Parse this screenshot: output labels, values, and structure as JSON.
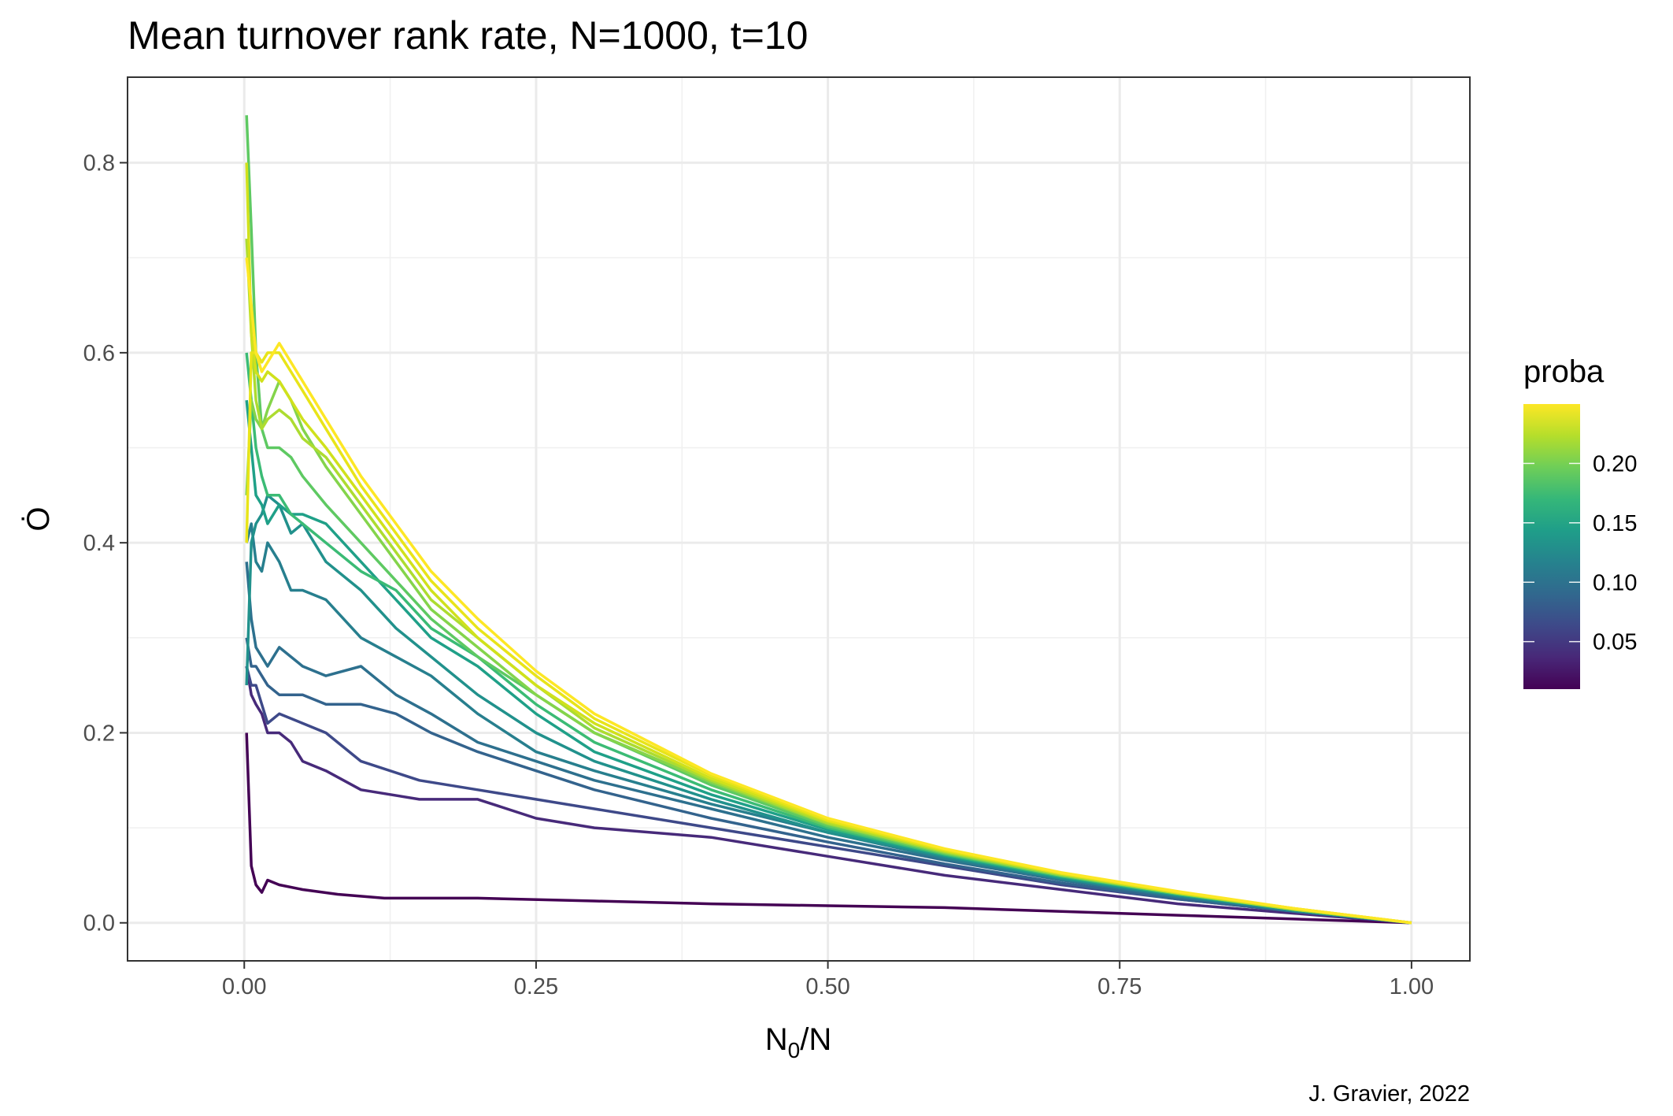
{
  "chart_data": {
    "type": "line",
    "title": "Mean turnover rank rate, N=1000, t=10",
    "xlabel_main": "N",
    "xlabel_sub": "0",
    "xlabel_tail": "/N",
    "ylabel": "Ȯ",
    "caption": "J. Gravier, 2022",
    "xlim": [
      -0.1,
      1.05
    ],
    "ylim": [
      -0.04,
      0.89
    ],
    "x_ticks": [
      0.0,
      0.25,
      0.5,
      0.75,
      1.0
    ],
    "x_tick_labels": [
      "0.00",
      "0.25",
      "0.50",
      "0.75",
      "1.00"
    ],
    "y_ticks": [
      0.0,
      0.2,
      0.4,
      0.6,
      0.8
    ],
    "y_tick_labels": [
      "0.0",
      "0.2",
      "0.4",
      "0.6",
      "0.8"
    ],
    "grid": true,
    "legend": {
      "title": "proba",
      "placement": "right",
      "type": "colorbar",
      "range": [
        0.01,
        0.25
      ],
      "ticks": [
        0.05,
        0.1,
        0.15,
        0.2
      ],
      "tick_labels": [
        "0.05",
        "0.10",
        "0.15",
        "0.20"
      ],
      "palette": [
        "#440154",
        "#482878",
        "#3e4989",
        "#31688e",
        "#26828e",
        "#1f9e89",
        "#35b779",
        "#6ece58",
        "#b5de2b",
        "#fde725"
      ]
    },
    "series": [
      {
        "proba": 0.01,
        "color": "#440154",
        "x": [
          0.002,
          0.006,
          0.01,
          0.015,
          0.02,
          0.03,
          0.05,
          0.08,
          0.12,
          0.2,
          0.3,
          0.4,
          0.5,
          0.6,
          0.7,
          0.8,
          0.9,
          1.0
        ],
        "y": [
          0.2,
          0.06,
          0.04,
          0.032,
          0.045,
          0.04,
          0.035,
          0.03,
          0.026,
          0.026,
          0.023,
          0.02,
          0.018,
          0.016,
          0.012,
          0.008,
          0.004,
          0.0
        ]
      },
      {
        "proba": 0.03,
        "color": "#472a7a",
        "x": [
          0.002,
          0.006,
          0.01,
          0.015,
          0.02,
          0.03,
          0.04,
          0.05,
          0.07,
          0.1,
          0.15,
          0.2,
          0.25,
          0.3,
          0.4,
          0.5,
          0.6,
          0.7,
          0.8,
          0.9,
          1.0
        ],
        "y": [
          0.27,
          0.24,
          0.23,
          0.22,
          0.2,
          0.2,
          0.19,
          0.17,
          0.16,
          0.14,
          0.13,
          0.13,
          0.11,
          0.1,
          0.09,
          0.07,
          0.05,
          0.035,
          0.02,
          0.01,
          0.0
        ]
      },
      {
        "proba": 0.05,
        "color": "#3e4989",
        "x": [
          0.002,
          0.006,
          0.01,
          0.015,
          0.02,
          0.03,
          0.05,
          0.07,
          0.1,
          0.15,
          0.2,
          0.25,
          0.3,
          0.4,
          0.5,
          0.6,
          0.7,
          0.8,
          0.9,
          1.0
        ],
        "y": [
          0.27,
          0.25,
          0.25,
          0.23,
          0.21,
          0.22,
          0.21,
          0.2,
          0.17,
          0.15,
          0.14,
          0.13,
          0.12,
          0.1,
          0.08,
          0.06,
          0.04,
          0.025,
          0.012,
          0.0
        ]
      },
      {
        "proba": 0.075,
        "color": "#33638d",
        "x": [
          0.002,
          0.006,
          0.01,
          0.015,
          0.02,
          0.03,
          0.05,
          0.07,
          0.1,
          0.13,
          0.16,
          0.2,
          0.25,
          0.3,
          0.4,
          0.5,
          0.6,
          0.7,
          0.8,
          0.9,
          1.0
        ],
        "y": [
          0.3,
          0.27,
          0.27,
          0.26,
          0.25,
          0.24,
          0.24,
          0.23,
          0.23,
          0.22,
          0.2,
          0.18,
          0.16,
          0.14,
          0.11,
          0.085,
          0.062,
          0.042,
          0.025,
          0.012,
          0.0
        ]
      },
      {
        "proba": 0.09,
        "color": "#2d708e",
        "x": [
          0.002,
          0.006,
          0.01,
          0.015,
          0.02,
          0.03,
          0.05,
          0.07,
          0.1,
          0.13,
          0.16,
          0.2,
          0.25,
          0.3,
          0.4,
          0.5,
          0.6,
          0.7,
          0.8,
          0.9,
          1.0
        ],
        "y": [
          0.38,
          0.32,
          0.29,
          0.28,
          0.27,
          0.29,
          0.27,
          0.26,
          0.27,
          0.24,
          0.22,
          0.19,
          0.17,
          0.15,
          0.12,
          0.09,
          0.066,
          0.045,
          0.027,
          0.012,
          0.0
        ]
      },
      {
        "proba": 0.11,
        "color": "#277f8e",
        "x": [
          0.002,
          0.006,
          0.01,
          0.015,
          0.02,
          0.03,
          0.04,
          0.05,
          0.07,
          0.1,
          0.13,
          0.16,
          0.2,
          0.25,
          0.3,
          0.4,
          0.5,
          0.6,
          0.7,
          0.8,
          0.9,
          1.0
        ],
        "y": [
          0.4,
          0.42,
          0.38,
          0.37,
          0.4,
          0.38,
          0.35,
          0.35,
          0.34,
          0.3,
          0.28,
          0.26,
          0.22,
          0.18,
          0.16,
          0.125,
          0.095,
          0.068,
          0.046,
          0.028,
          0.013,
          0.0
        ]
      },
      {
        "proba": 0.13,
        "color": "#21918c",
        "x": [
          0.002,
          0.006,
          0.01,
          0.015,
          0.02,
          0.03,
          0.04,
          0.05,
          0.07,
          0.1,
          0.13,
          0.16,
          0.2,
          0.25,
          0.3,
          0.4,
          0.5,
          0.6,
          0.7,
          0.8,
          0.9,
          1.0
        ],
        "y": [
          0.25,
          0.4,
          0.42,
          0.43,
          0.45,
          0.44,
          0.41,
          0.42,
          0.38,
          0.35,
          0.31,
          0.28,
          0.24,
          0.2,
          0.17,
          0.13,
          0.095,
          0.07,
          0.047,
          0.029,
          0.013,
          0.0
        ]
      },
      {
        "proba": 0.15,
        "color": "#1fa088",
        "x": [
          0.002,
          0.006,
          0.01,
          0.015,
          0.02,
          0.03,
          0.04,
          0.05,
          0.07,
          0.1,
          0.13,
          0.16,
          0.2,
          0.25,
          0.3,
          0.4,
          0.5,
          0.6,
          0.7,
          0.8,
          0.9,
          1.0
        ],
        "y": [
          0.55,
          0.5,
          0.45,
          0.44,
          0.42,
          0.44,
          0.43,
          0.43,
          0.42,
          0.38,
          0.34,
          0.3,
          0.27,
          0.22,
          0.18,
          0.135,
          0.098,
          0.071,
          0.048,
          0.03,
          0.014,
          0.0
        ]
      },
      {
        "proba": 0.17,
        "color": "#3bbb75",
        "x": [
          0.002,
          0.006,
          0.01,
          0.015,
          0.02,
          0.03,
          0.04,
          0.05,
          0.07,
          0.1,
          0.13,
          0.16,
          0.2,
          0.25,
          0.3,
          0.4,
          0.5,
          0.6,
          0.7,
          0.8,
          0.9,
          1.0
        ],
        "y": [
          0.6,
          0.55,
          0.5,
          0.47,
          0.45,
          0.45,
          0.43,
          0.42,
          0.4,
          0.37,
          0.35,
          0.31,
          0.28,
          0.23,
          0.19,
          0.14,
          0.1,
          0.072,
          0.049,
          0.03,
          0.014,
          0.0
        ]
      },
      {
        "proba": 0.19,
        "color": "#5ec962",
        "x": [
          0.002,
          0.006,
          0.01,
          0.015,
          0.02,
          0.03,
          0.04,
          0.05,
          0.07,
          0.1,
          0.13,
          0.16,
          0.2,
          0.25,
          0.3,
          0.4,
          0.5,
          0.6,
          0.7,
          0.8,
          0.9,
          1.0
        ],
        "y": [
          0.85,
          0.73,
          0.6,
          0.52,
          0.5,
          0.5,
          0.49,
          0.47,
          0.44,
          0.4,
          0.36,
          0.32,
          0.28,
          0.24,
          0.2,
          0.145,
          0.102,
          0.073,
          0.05,
          0.031,
          0.014,
          0.0
        ]
      },
      {
        "proba": 0.21,
        "color": "#84d44b",
        "x": [
          0.002,
          0.006,
          0.01,
          0.015,
          0.02,
          0.03,
          0.04,
          0.05,
          0.07,
          0.1,
          0.13,
          0.16,
          0.2,
          0.25,
          0.3,
          0.4,
          0.5,
          0.6,
          0.7,
          0.8,
          0.9,
          1.0
        ],
        "y": [
          0.45,
          0.55,
          0.53,
          0.52,
          0.54,
          0.57,
          0.55,
          0.52,
          0.48,
          0.43,
          0.38,
          0.33,
          0.29,
          0.24,
          0.2,
          0.148,
          0.104,
          0.074,
          0.05,
          0.031,
          0.014,
          0.0
        ]
      },
      {
        "proba": 0.225,
        "color": "#addc30",
        "x": [
          0.002,
          0.006,
          0.01,
          0.015,
          0.02,
          0.03,
          0.04,
          0.05,
          0.07,
          0.1,
          0.13,
          0.16,
          0.2,
          0.25,
          0.3,
          0.4,
          0.5,
          0.6,
          0.7,
          0.8,
          0.9,
          1.0
        ],
        "y": [
          0.72,
          0.62,
          0.55,
          0.52,
          0.53,
          0.54,
          0.53,
          0.51,
          0.49,
          0.44,
          0.39,
          0.34,
          0.3,
          0.25,
          0.205,
          0.15,
          0.105,
          0.075,
          0.051,
          0.031,
          0.014,
          0.0
        ]
      },
      {
        "proba": 0.235,
        "color": "#d0e11c",
        "x": [
          0.002,
          0.006,
          0.01,
          0.015,
          0.02,
          0.03,
          0.04,
          0.05,
          0.07,
          0.1,
          0.13,
          0.16,
          0.2,
          0.25,
          0.3,
          0.4,
          0.5,
          0.6,
          0.7,
          0.8,
          0.9,
          1.0
        ],
        "y": [
          0.8,
          0.62,
          0.58,
          0.57,
          0.58,
          0.57,
          0.55,
          0.53,
          0.5,
          0.45,
          0.4,
          0.35,
          0.3,
          0.25,
          0.21,
          0.152,
          0.107,
          0.076,
          0.052,
          0.032,
          0.015,
          0.0
        ]
      },
      {
        "proba": 0.245,
        "color": "#e8e419",
        "x": [
          0.002,
          0.006,
          0.01,
          0.015,
          0.02,
          0.03,
          0.04,
          0.05,
          0.07,
          0.1,
          0.13,
          0.16,
          0.2,
          0.25,
          0.3,
          0.4,
          0.5,
          0.6,
          0.7,
          0.8,
          0.9,
          1.0
        ],
        "y": [
          0.4,
          0.6,
          0.6,
          0.59,
          0.6,
          0.6,
          0.58,
          0.56,
          0.52,
          0.46,
          0.41,
          0.36,
          0.31,
          0.26,
          0.215,
          0.155,
          0.108,
          0.077,
          0.052,
          0.032,
          0.015,
          0.0
        ]
      },
      {
        "proba": 0.25,
        "color": "#fde725",
        "x": [
          0.002,
          0.006,
          0.01,
          0.015,
          0.02,
          0.03,
          0.04,
          0.05,
          0.07,
          0.1,
          0.13,
          0.16,
          0.2,
          0.25,
          0.3,
          0.4,
          0.5,
          0.6,
          0.7,
          0.8,
          0.9,
          1.0
        ],
        "y": [
          0.7,
          0.65,
          0.6,
          0.58,
          0.59,
          0.61,
          0.59,
          0.57,
          0.53,
          0.47,
          0.42,
          0.37,
          0.32,
          0.265,
          0.22,
          0.157,
          0.11,
          0.078,
          0.053,
          0.033,
          0.015,
          0.0
        ]
      }
    ]
  }
}
